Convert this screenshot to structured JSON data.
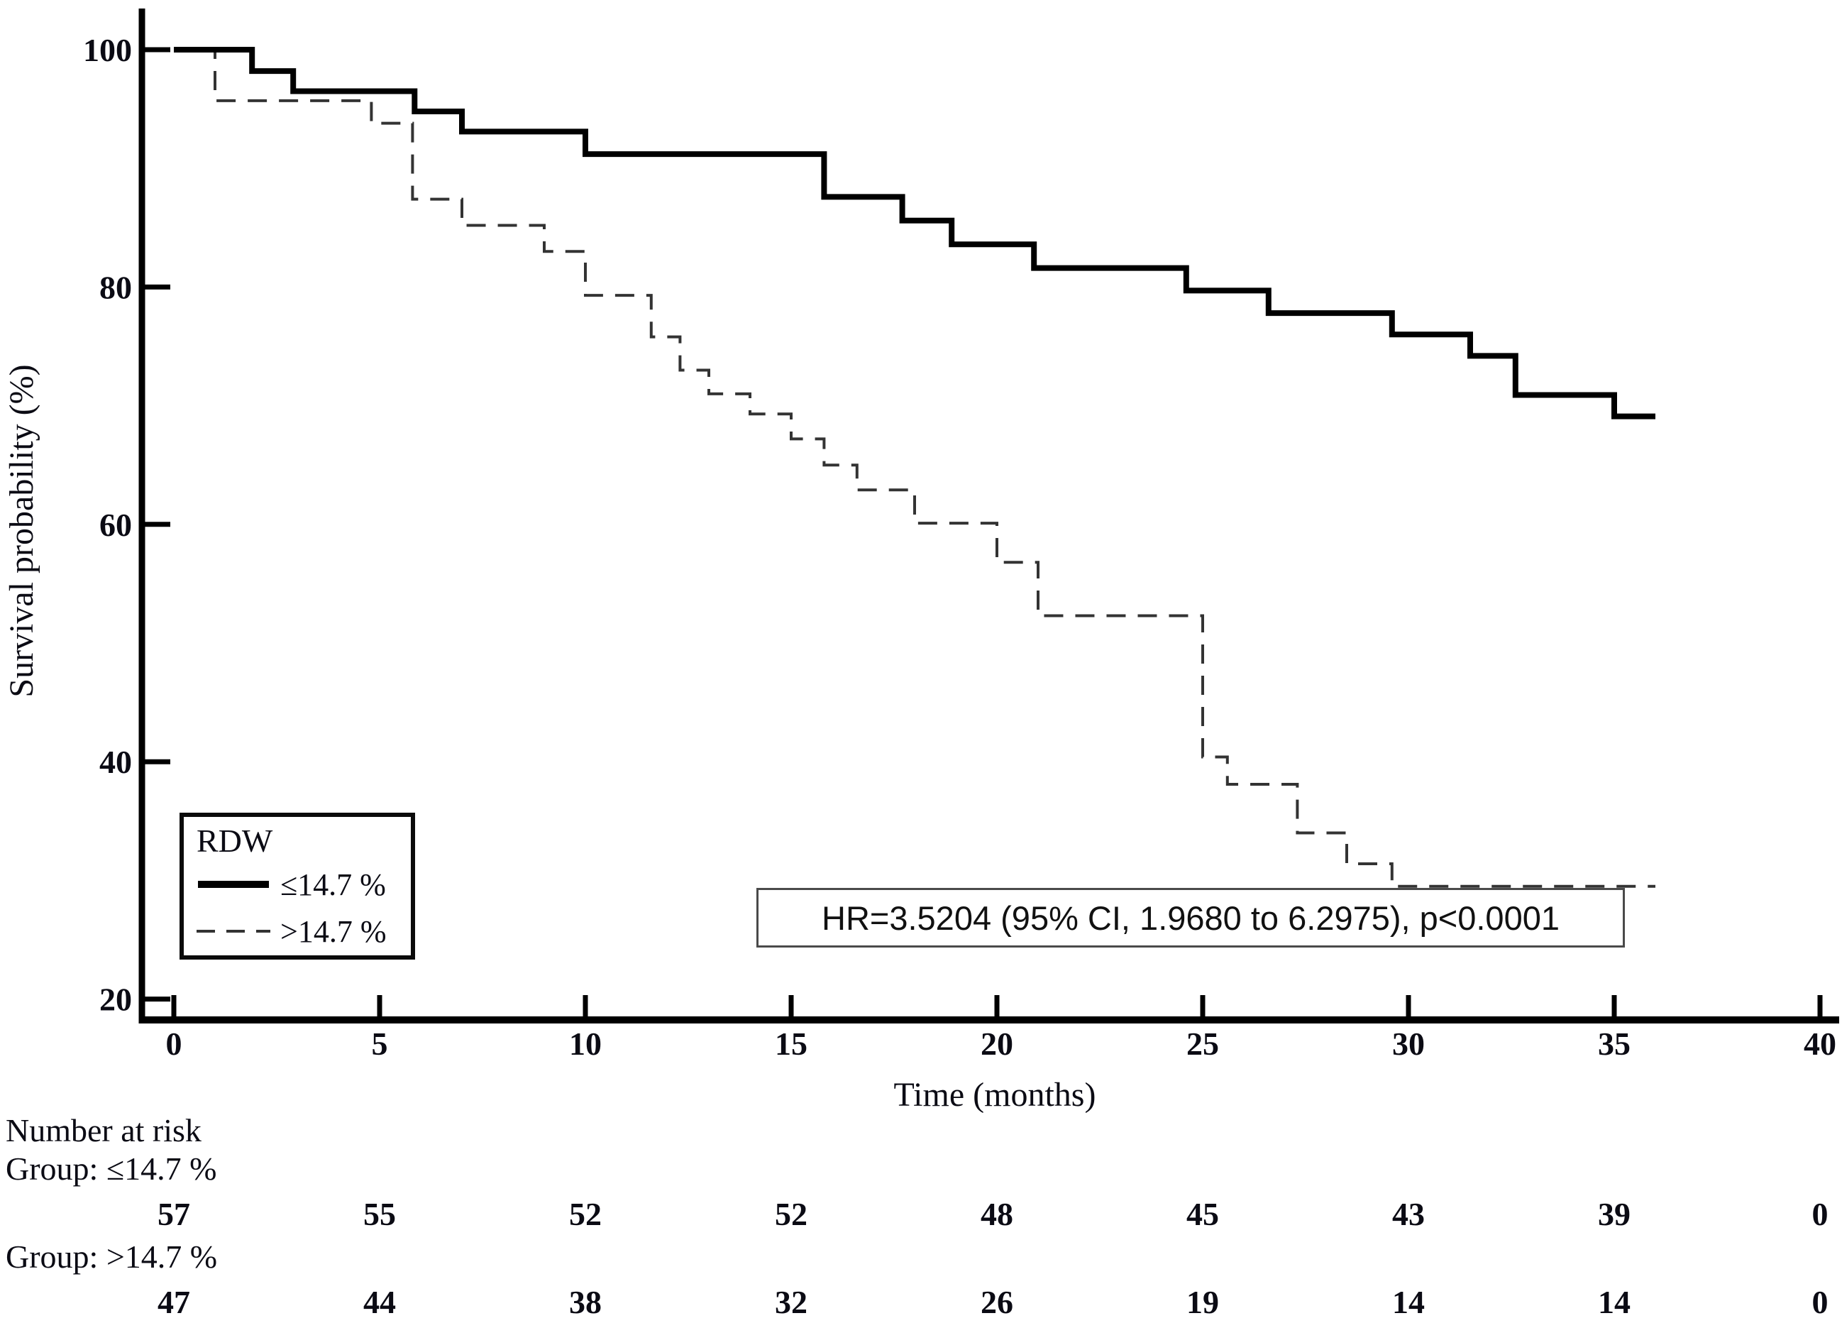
{
  "colors": {
    "solid_series": "#000000",
    "dashed_series": "#333333",
    "axis": "#000000",
    "annotation_border": "#4a4a4a"
  },
  "chart_data": {
    "type": "line",
    "subtype": "kaplan-meier-step",
    "title": "",
    "xlabel": "Time (months)",
    "ylabel": "Survival probability (%)",
    "xlim": [
      0,
      40
    ],
    "ylim": [
      20,
      100
    ],
    "x_ticks": [
      0,
      5,
      10,
      15,
      20,
      25,
      30,
      35,
      40
    ],
    "y_ticks": [
      20,
      40,
      60,
      80,
      100
    ],
    "grid": "off",
    "legend_position": "bottom-left",
    "legend": {
      "title": "RDW"
    },
    "series": [
      {
        "name": "≤14.7 %",
        "style": "solid",
        "end_time": 36,
        "steps": [
          [
            0,
            100
          ],
          [
            1.9,
            98.2
          ],
          [
            2.9,
            96.5
          ],
          [
            5.85,
            94.8
          ],
          [
            7,
            93.1
          ],
          [
            10,
            91.2
          ],
          [
            15.8,
            87.6
          ],
          [
            17.7,
            85.6
          ],
          [
            18.9,
            83.6
          ],
          [
            20.9,
            81.6
          ],
          [
            24.6,
            79.7
          ],
          [
            26.6,
            77.8
          ],
          [
            29.6,
            76.0
          ],
          [
            31.5,
            74.2
          ],
          [
            32.6,
            70.9
          ],
          [
            35,
            69.1
          ]
        ]
      },
      {
        "name": ">14.7 %",
        "style": "dashed",
        "end_time": 36,
        "steps": [
          [
            0,
            100
          ],
          [
            1,
            95.7
          ],
          [
            4.8,
            93.8
          ],
          [
            5.8,
            87.4
          ],
          [
            7,
            85.2
          ],
          [
            9,
            83.0
          ],
          [
            10,
            79.3
          ],
          [
            11.6,
            75.8
          ],
          [
            12.3,
            73.0
          ],
          [
            13,
            71.0
          ],
          [
            14,
            69.3
          ],
          [
            15,
            67.2
          ],
          [
            15.8,
            65.0
          ],
          [
            16.6,
            62.9
          ],
          [
            18,
            60.1
          ],
          [
            20,
            56.8
          ],
          [
            21,
            52.3
          ],
          [
            25,
            40.4
          ],
          [
            25.6,
            38.1
          ],
          [
            27.3,
            34.0
          ],
          [
            28.5,
            31.4
          ],
          [
            29.6,
            29.5
          ]
        ]
      }
    ],
    "annotation": "HR=3.5204 (95% CI, 1.9680 to 6.2975), p<0.0001",
    "number_at_risk": {
      "label": "Number at risk",
      "times": [
        0,
        5,
        10,
        15,
        20,
        25,
        30,
        35,
        40
      ],
      "groups": [
        {
          "label": "Group: ≤14.7 %",
          "counts": [
            57,
            55,
            52,
            52,
            48,
            45,
            43,
            39,
            0
          ]
        },
        {
          "label": "Group: >14.7 %",
          "counts": [
            47,
            44,
            38,
            32,
            26,
            19,
            14,
            14,
            0
          ]
        }
      ]
    }
  }
}
